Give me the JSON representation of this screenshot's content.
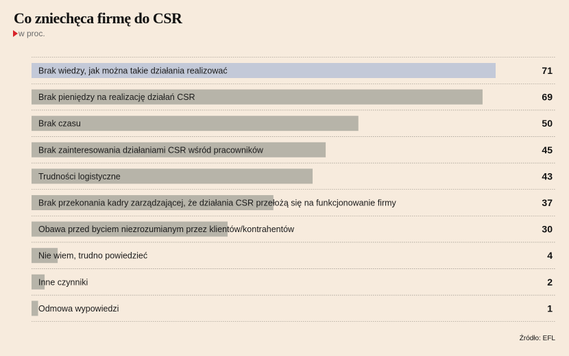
{
  "header": {
    "title": "Co zniechęca firmę do CSR",
    "subtitle": "w proc."
  },
  "source": "Źródło: EFL",
  "colors": {
    "background": "#f7ebdd",
    "highlight_bar": "#c3c9d8",
    "bar": "#b7b4a9",
    "gridline": "#9a948a",
    "accent": "#d8232a"
  },
  "chart_data": {
    "type": "bar",
    "orientation": "horizontal",
    "title": "Co zniechęca firmę do CSR",
    "subtitle": "w proc.",
    "categories": [
      "Brak wiedzy, jak można takie działania realizować",
      "Brak pieniędzy na realizację działań CSR",
      "Brak czasu",
      "Brak zainteresowania działaniami CSR wśród pracowników",
      "Trudności logistyczne",
      "Brak przekonania kadry zarządzającej, że działania CSR przełożą się na funkcjonowanie firmy",
      "Obawa przed byciem niezrozumianym przez klientów/kontrahentów",
      "Nie wiem, trudno powiedzieć",
      "Inne czynniki",
      "Odmowa wypowiedzi"
    ],
    "values": [
      71,
      69,
      50,
      45,
      43,
      37,
      30,
      4,
      2,
      1
    ],
    "highlight_index": 0,
    "xlim": [
      0,
      71
    ],
    "grid": false,
    "legend": "none"
  }
}
